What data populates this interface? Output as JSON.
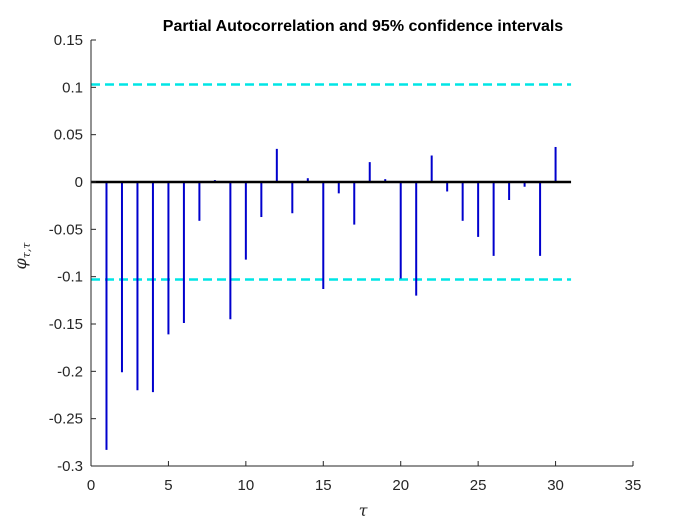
{
  "chart_data": {
    "type": "bar",
    "title": "Partial Autocorrelation and 95% confidence intervals",
    "xlabel": "τ",
    "ylabel": "φτ,τ",
    "xlim": [
      0,
      35
    ],
    "ylim": [
      -0.3,
      0.15
    ],
    "xticks": [
      "0",
      "5",
      "10",
      "15",
      "20",
      "25",
      "30",
      "35"
    ],
    "yticks": [
      "0.15",
      "0.1",
      "0.05",
      "0",
      "-0.05",
      "-0.1",
      "-0.15",
      "-0.2",
      "-0.25",
      "-0.3"
    ],
    "x": [
      1,
      2,
      3,
      4,
      5,
      6,
      7,
      8,
      9,
      10,
      11,
      12,
      13,
      14,
      15,
      16,
      17,
      18,
      19,
      20,
      21,
      22,
      23,
      24,
      25,
      26,
      27,
      28,
      29,
      30
    ],
    "values": [
      -0.283,
      -0.201,
      -0.22,
      -0.222,
      -0.161,
      -0.149,
      -0.041,
      0.002,
      -0.145,
      -0.082,
      -0.037,
      0.035,
      -0.033,
      0.004,
      -0.113,
      -0.012,
      -0.045,
      0.021,
      0.003,
      -0.102,
      -0.12,
      0.028,
      -0.01,
      -0.041,
      -0.058,
      -0.078,
      -0.019,
      -0.005,
      -0.078,
      0.037
    ],
    "confidence_bound": 0.103,
    "zero_line_x_range": [
      0,
      31
    ],
    "colors": {
      "bars": "#0000cd",
      "confidence": "#00e5e5",
      "zero_line": "#000000",
      "axes": "#262626"
    },
    "grid": false
  }
}
